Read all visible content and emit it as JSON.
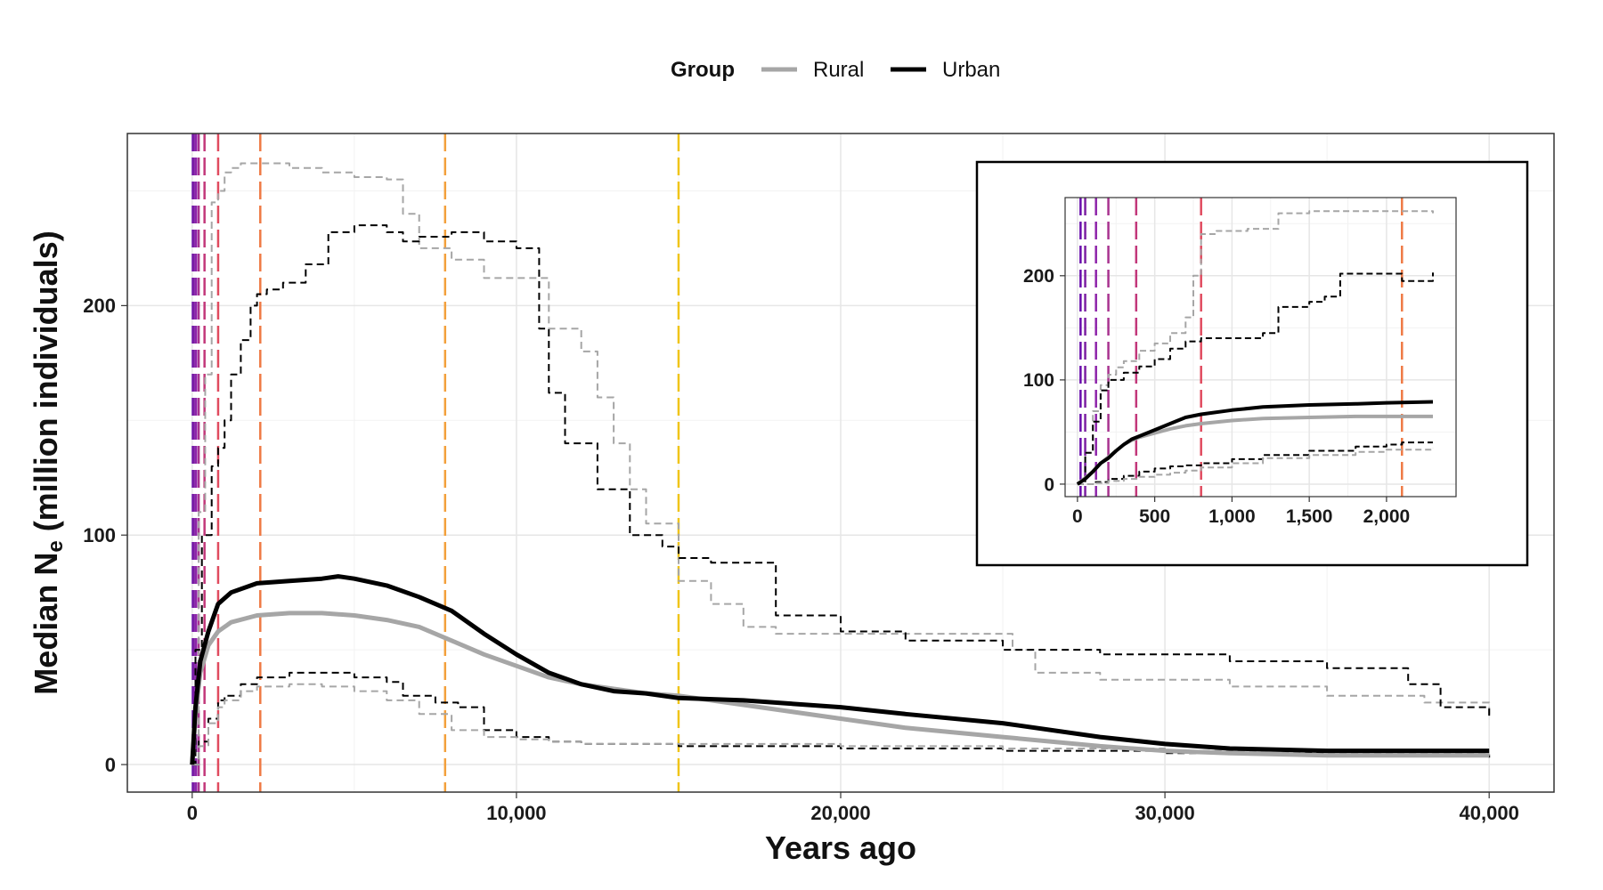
{
  "chart_data": {
    "type": "line",
    "xlabel": "Years ago",
    "ylabel_prefix": "Median N",
    "ylabel_sub": "e",
    "ylabel_suffix": " (million individuals)",
    "xlim": [
      -2000,
      42000
    ],
    "ylim": [
      -12,
      275
    ],
    "xticks": [
      0,
      10000,
      20000,
      30000,
      40000
    ],
    "xtick_labels": [
      "0",
      "10,000",
      "20,000",
      "30,000",
      "40,000"
    ],
    "yticks": [
      0,
      100,
      200
    ],
    "ytick_labels": [
      "0",
      "100",
      "200"
    ],
    "grid": true,
    "legend": {
      "title": "Group",
      "position": "top",
      "entries": [
        {
          "name": "Rural",
          "color": "#a6a6a6"
        },
        {
          "name": "Urban",
          "color": "#000000"
        }
      ]
    },
    "vlines": [
      {
        "x": 20,
        "color": "#6a0dad"
      },
      {
        "x": 50,
        "color": "#7b1fa2"
      },
      {
        "x": 120,
        "color": "#8e24aa"
      },
      {
        "x": 200,
        "color": "#a8328f"
      },
      {
        "x": 380,
        "color": "#c2377a"
      },
      {
        "x": 800,
        "color": "#e04b5f"
      },
      {
        "x": 2100,
        "color": "#ef7a45"
      },
      {
        "x": 7800,
        "color": "#f3a03c"
      },
      {
        "x": 15000,
        "color": "#f0c419"
      }
    ],
    "series": [
      {
        "name": "Urban",
        "role": "median",
        "color": "#000000",
        "width": 5,
        "dash": "",
        "x": [
          0,
          100,
          250,
          500,
          800,
          1200,
          2000,
          3000,
          4000,
          4500,
          5000,
          6000,
          7000,
          8000,
          9000,
          10000,
          11000,
          12000,
          13000,
          14000,
          15000,
          17000,
          20000,
          22000,
          25000,
          28000,
          30000,
          32000,
          35000,
          40000
        ],
        "y": [
          0,
          25,
          45,
          58,
          70,
          75,
          79,
          80,
          81,
          82,
          81,
          78,
          73,
          67,
          57,
          48,
          40,
          35,
          32,
          31,
          29,
          28,
          25,
          22,
          18,
          12,
          9,
          7,
          6,
          6
        ]
      },
      {
        "name": "Rural",
        "role": "median",
        "color": "#a6a6a6",
        "width": 5,
        "dash": "",
        "x": [
          0,
          100,
          250,
          500,
          800,
          1200,
          2000,
          3000,
          4000,
          5000,
          6000,
          7000,
          8000,
          9000,
          10000,
          11000,
          12000,
          13000,
          14000,
          15000,
          17000,
          20000,
          22000,
          25000,
          28000,
          30000,
          32000,
          35000,
          40000
        ],
        "y": [
          0,
          22,
          40,
          52,
          58,
          62,
          65,
          66,
          66,
          65,
          63,
          60,
          54,
          48,
          43,
          38,
          35,
          33,
          31,
          30,
          26,
          20,
          16,
          12,
          8,
          6,
          5,
          4,
          4
        ]
      },
      {
        "name": "Rural",
        "role": "upper",
        "color": "#a6a6a6",
        "width": 2,
        "dash": "8,5",
        "x": [
          0,
          200,
          400,
          600,
          800,
          1000,
          1200,
          1500,
          2000,
          3000,
          4000,
          5000,
          6000,
          6500,
          7000,
          8000,
          9000,
          10000,
          11000,
          12000,
          12500,
          13000,
          13500,
          14000,
          15000,
          16000,
          17000,
          18000,
          19000,
          20000,
          22000,
          25000,
          25300,
          26000,
          28000,
          32000,
          35000,
          38000,
          40000
        ],
        "y": [
          0,
          110,
          170,
          245,
          250,
          258,
          260,
          262,
          262,
          260,
          258,
          256,
          255,
          240,
          225,
          220,
          212,
          212,
          190,
          180,
          160,
          140,
          120,
          105,
          80,
          70,
          60,
          57,
          57,
          57,
          57,
          57,
          50,
          40,
          37,
          34,
          30,
          27,
          22
        ]
      },
      {
        "name": "Urban",
        "role": "upper",
        "color": "#000000",
        "width": 2,
        "dash": "8,5",
        "x": [
          0,
          100,
          300,
          600,
          800,
          1000,
          1200,
          1500,
          1800,
          2000,
          2300,
          2800,
          3500,
          4200,
          5000,
          6000,
          6500,
          7000,
          8000,
          9000,
          10000,
          10700,
          11000,
          11500,
          12500,
          13500,
          14500,
          15000,
          16000,
          17000,
          18000,
          20000,
          22000,
          25000,
          28000,
          32000,
          35000,
          37500,
          38500,
          40000
        ],
        "y": [
          0,
          50,
          100,
          130,
          138,
          150,
          170,
          185,
          200,
          205,
          207,
          210,
          218,
          232,
          235,
          232,
          228,
          230,
          232,
          228,
          225,
          190,
          162,
          140,
          120,
          100,
          95,
          90,
          88,
          88,
          65,
          58,
          54,
          50,
          48,
          45,
          42,
          35,
          25,
          20
        ]
      },
      {
        "name": "Urban",
        "role": "lower",
        "color": "#000000",
        "width": 2,
        "dash": "8,5",
        "x": [
          0,
          200,
          500,
          800,
          1000,
          1500,
          2000,
          3000,
          4000,
          5000,
          6000,
          6500,
          7500,
          8200,
          9000,
          10000,
          11000,
          12000,
          15000,
          20000,
          25000,
          30000,
          35000,
          40000
        ],
        "y": [
          0,
          10,
          20,
          28,
          30,
          35,
          38,
          40,
          40,
          38,
          36,
          30,
          27,
          25,
          15,
          12,
          10,
          9,
          8,
          7,
          6,
          5,
          4,
          3
        ]
      },
      {
        "name": "Rural",
        "role": "lower",
        "color": "#a6a6a6",
        "width": 2,
        "dash": "8,5",
        "x": [
          0,
          200,
          500,
          800,
          1000,
          1500,
          2000,
          3000,
          4000,
          5000,
          6000,
          7000,
          8000,
          9000,
          10000,
          11000,
          12000,
          15000,
          20000,
          25000,
          30000,
          35000,
          40000
        ],
        "y": [
          0,
          8,
          18,
          25,
          28,
          32,
          34,
          35,
          34,
          32,
          28,
          22,
          15,
          12,
          11,
          10,
          9,
          9,
          8,
          7,
          6,
          5,
          4
        ]
      }
    ],
    "inset": {
      "xlim": [
        -80,
        2450
      ],
      "ylim": [
        -12,
        275
      ],
      "xticks": [
        0,
        500,
        1000,
        1500,
        2000
      ],
      "xtick_labels": [
        "0",
        "500",
        "1,000",
        "1,500",
        "2,000"
      ],
      "yticks": [
        0,
        100,
        200
      ],
      "ytick_labels": [
        "0",
        "100",
        "200"
      ],
      "series": [
        {
          "name": "Urban",
          "role": "median",
          "color": "#000000",
          "width": 4,
          "dash": "",
          "x": [
            0,
            50,
            100,
            150,
            200,
            250,
            300,
            350,
            400,
            500,
            600,
            700,
            800,
            1000,
            1200,
            1500,
            1800,
            2000,
            2300
          ],
          "y": [
            0,
            5,
            12,
            20,
            25,
            32,
            38,
            43,
            46,
            52,
            58,
            64,
            67,
            71,
            74,
            76,
            77,
            78,
            79
          ]
        },
        {
          "name": "Rural",
          "role": "median",
          "color": "#a6a6a6",
          "width": 4,
          "dash": "",
          "x": [
            0,
            50,
            100,
            150,
            200,
            250,
            300,
            350,
            400,
            500,
            600,
            700,
            800,
            1000,
            1200,
            1500,
            1800,
            2000,
            2300
          ],
          "y": [
            0,
            6,
            12,
            20,
            26,
            32,
            38,
            42,
            45,
            49,
            53,
            56,
            58,
            61,
            63,
            64,
            65,
            65,
            65
          ]
        },
        {
          "name": "Rural",
          "role": "upper",
          "color": "#a6a6a6",
          "width": 2,
          "dash": "7,4",
          "x": [
            0,
            50,
            100,
            150,
            200,
            250,
            300,
            400,
            500,
            600,
            700,
            750,
            800,
            900,
            1100,
            1300,
            1500,
            1700,
            2000,
            2300
          ],
          "y": [
            0,
            30,
            70,
            95,
            105,
            112,
            118,
            128,
            135,
            145,
            160,
            200,
            240,
            243,
            245,
            260,
            262,
            262,
            262,
            260
          ]
        },
        {
          "name": "Urban",
          "role": "upper",
          "color": "#000000",
          "width": 2,
          "dash": "7,4",
          "x": [
            0,
            50,
            100,
            150,
            200,
            300,
            400,
            500,
            600,
            700,
            800,
            1000,
            1200,
            1300,
            1500,
            1600,
            1700,
            2000,
            2100,
            2300
          ],
          "y": [
            0,
            30,
            60,
            90,
            100,
            107,
            113,
            120,
            130,
            137,
            140,
            140,
            145,
            170,
            175,
            180,
            202,
            202,
            195,
            203
          ]
        },
        {
          "name": "Urban",
          "role": "lower",
          "color": "#000000",
          "width": 2,
          "dash": "7,4",
          "x": [
            0,
            100,
            200,
            300,
            400,
            500,
            600,
            700,
            800,
            1000,
            1200,
            1500,
            1800,
            2000,
            2100,
            2300
          ],
          "y": [
            0,
            2,
            5,
            8,
            12,
            15,
            17,
            18,
            20,
            24,
            28,
            32,
            36,
            38,
            40,
            40
          ]
        },
        {
          "name": "Rural",
          "role": "lower",
          "color": "#a6a6a6",
          "width": 2,
          "dash": "7,4",
          "x": [
            0,
            100,
            200,
            300,
            400,
            500,
            600,
            700,
            800,
            1000,
            1200,
            1500,
            1800,
            2000,
            2300
          ],
          "y": [
            0,
            1,
            3,
            5,
            7,
            9,
            11,
            13,
            16,
            20,
            25,
            28,
            31,
            33,
            35
          ]
        }
      ]
    }
  }
}
